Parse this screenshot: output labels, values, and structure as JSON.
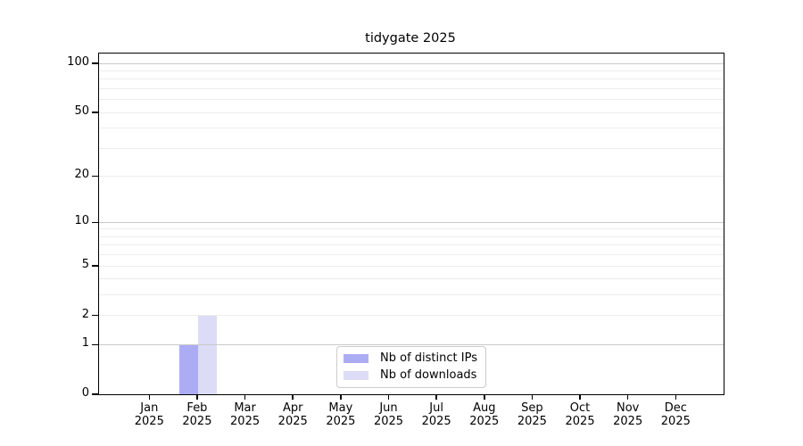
{
  "chart_data": {
    "type": "bar",
    "title": "tidygate 2025",
    "categories": [
      "Jan",
      "Feb",
      "Mar",
      "Apr",
      "May",
      "Jun",
      "Jul",
      "Aug",
      "Sep",
      "Oct",
      "Nov",
      "Dec"
    ],
    "x_year_line": "2025",
    "series": [
      {
        "name": "Nb of distinct IPs",
        "color": "#acacf4",
        "values": [
          0,
          1,
          0,
          0,
          0,
          0,
          0,
          0,
          0,
          0,
          0,
          0
        ]
      },
      {
        "name": "Nb of downloads",
        "color": "#dcdcf6",
        "values": [
          0,
          2,
          0,
          0,
          0,
          0,
          0,
          0,
          0,
          0,
          0,
          0
        ]
      }
    ],
    "xlabel": "",
    "ylabel": "",
    "yscale": "log1p",
    "ylim": [
      0,
      115
    ],
    "yticks": [
      0,
      1,
      2,
      5,
      10,
      20,
      50,
      100
    ],
    "yticks_minor": [
      3,
      4,
      6,
      7,
      8,
      9,
      30,
      40,
      60,
      70,
      80,
      90
    ],
    "grid": true,
    "legend_position": "bottom-center"
  },
  "colors": {
    "bar_distinct_ips": "#acacf4",
    "bar_downloads": "#dcdcf6",
    "grid_decade": "#c9c9c9",
    "grid_minor": "#ededed",
    "axis": "#000000",
    "legend_border": "#cccccc"
  }
}
